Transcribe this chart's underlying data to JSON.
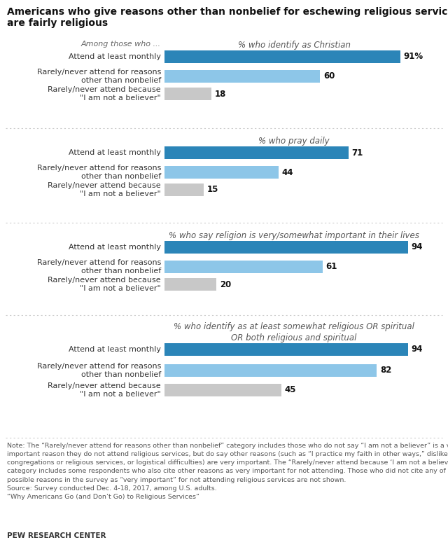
{
  "title_line1": "Americans who give reasons other than nonbelief for eschewing religious services",
  "title_line2": "are fairly religious",
  "sections": [
    {
      "subtitle": "% who identify as Christian",
      "rows": [
        {
          "label": "Attend at least monthly",
          "value": 91,
          "color": "#2b85b8",
          "label_suffix": "%"
        },
        {
          "label": "Rarely/never attend for reasons\nother than nonbelief",
          "value": 60,
          "color": "#8dc6e8",
          "label_suffix": ""
        },
        {
          "label": "Rarely/never attend because\n\"I am not a believer\"",
          "value": 18,
          "color": "#c8c8c8",
          "label_suffix": ""
        }
      ]
    },
    {
      "subtitle": "% who pray daily",
      "rows": [
        {
          "label": "Attend at least monthly",
          "value": 71,
          "color": "#2b85b8",
          "label_suffix": ""
        },
        {
          "label": "Rarely/never attend for reasons\nother than nonbelief",
          "value": 44,
          "color": "#8dc6e8",
          "label_suffix": ""
        },
        {
          "label": "Rarely/never attend because\n\"I am not a believer\"",
          "value": 15,
          "color": "#c8c8c8",
          "label_suffix": ""
        }
      ]
    },
    {
      "subtitle": "% who say religion is very/somewhat important in their lives",
      "rows": [
        {
          "label": "Attend at least monthly",
          "value": 94,
          "color": "#2b85b8",
          "label_suffix": ""
        },
        {
          "label": "Rarely/never attend for reasons\nother than nonbelief",
          "value": 61,
          "color": "#8dc6e8",
          "label_suffix": ""
        },
        {
          "label": "Rarely/never attend because\n\"I am not a believer\"",
          "value": 20,
          "color": "#c8c8c8",
          "label_suffix": ""
        }
      ]
    },
    {
      "subtitle": "% who identify as at least somewhat religious OR spiritual\nOR both religious and spiritual",
      "rows": [
        {
          "label": "Attend at least monthly",
          "value": 94,
          "color": "#2b85b8",
          "label_suffix": ""
        },
        {
          "label": "Rarely/never attend for reasons\nother than nonbelief",
          "value": 82,
          "color": "#8dc6e8",
          "label_suffix": ""
        },
        {
          "label": "Rarely/never attend because\n\"I am not a believer\"",
          "value": 45,
          "color": "#c8c8c8",
          "label_suffix": ""
        }
      ]
    }
  ],
  "header_label": "Among those who ...",
  "note_text": "Note: The “Rarely/never attend for reasons other than nonbelief” category includes those who do not say “I am not a believer” is a very\nimportant reason they do not attend religious services, but do say other reasons (such as “I practice my faith in other ways,” dislike of\ncongregations or religious services, or logistical difficulties) are very important. The “Rarely/never attend because ‘I am not a believer’”\ncategory includes some respondents who also cite other reasons as very important for not attending. Those who did not cite any of the eight\npossible reasons in the survey as “very important” for not attending religious services are not shown.\nSource: Survey conducted Dec. 4-18, 2017, among U.S. adults.\n“Why Americans Go (and Don’t Go) to Religious Services”",
  "pew_label": "PEW RESEARCH CENTER",
  "bg_color": "#ffffff"
}
